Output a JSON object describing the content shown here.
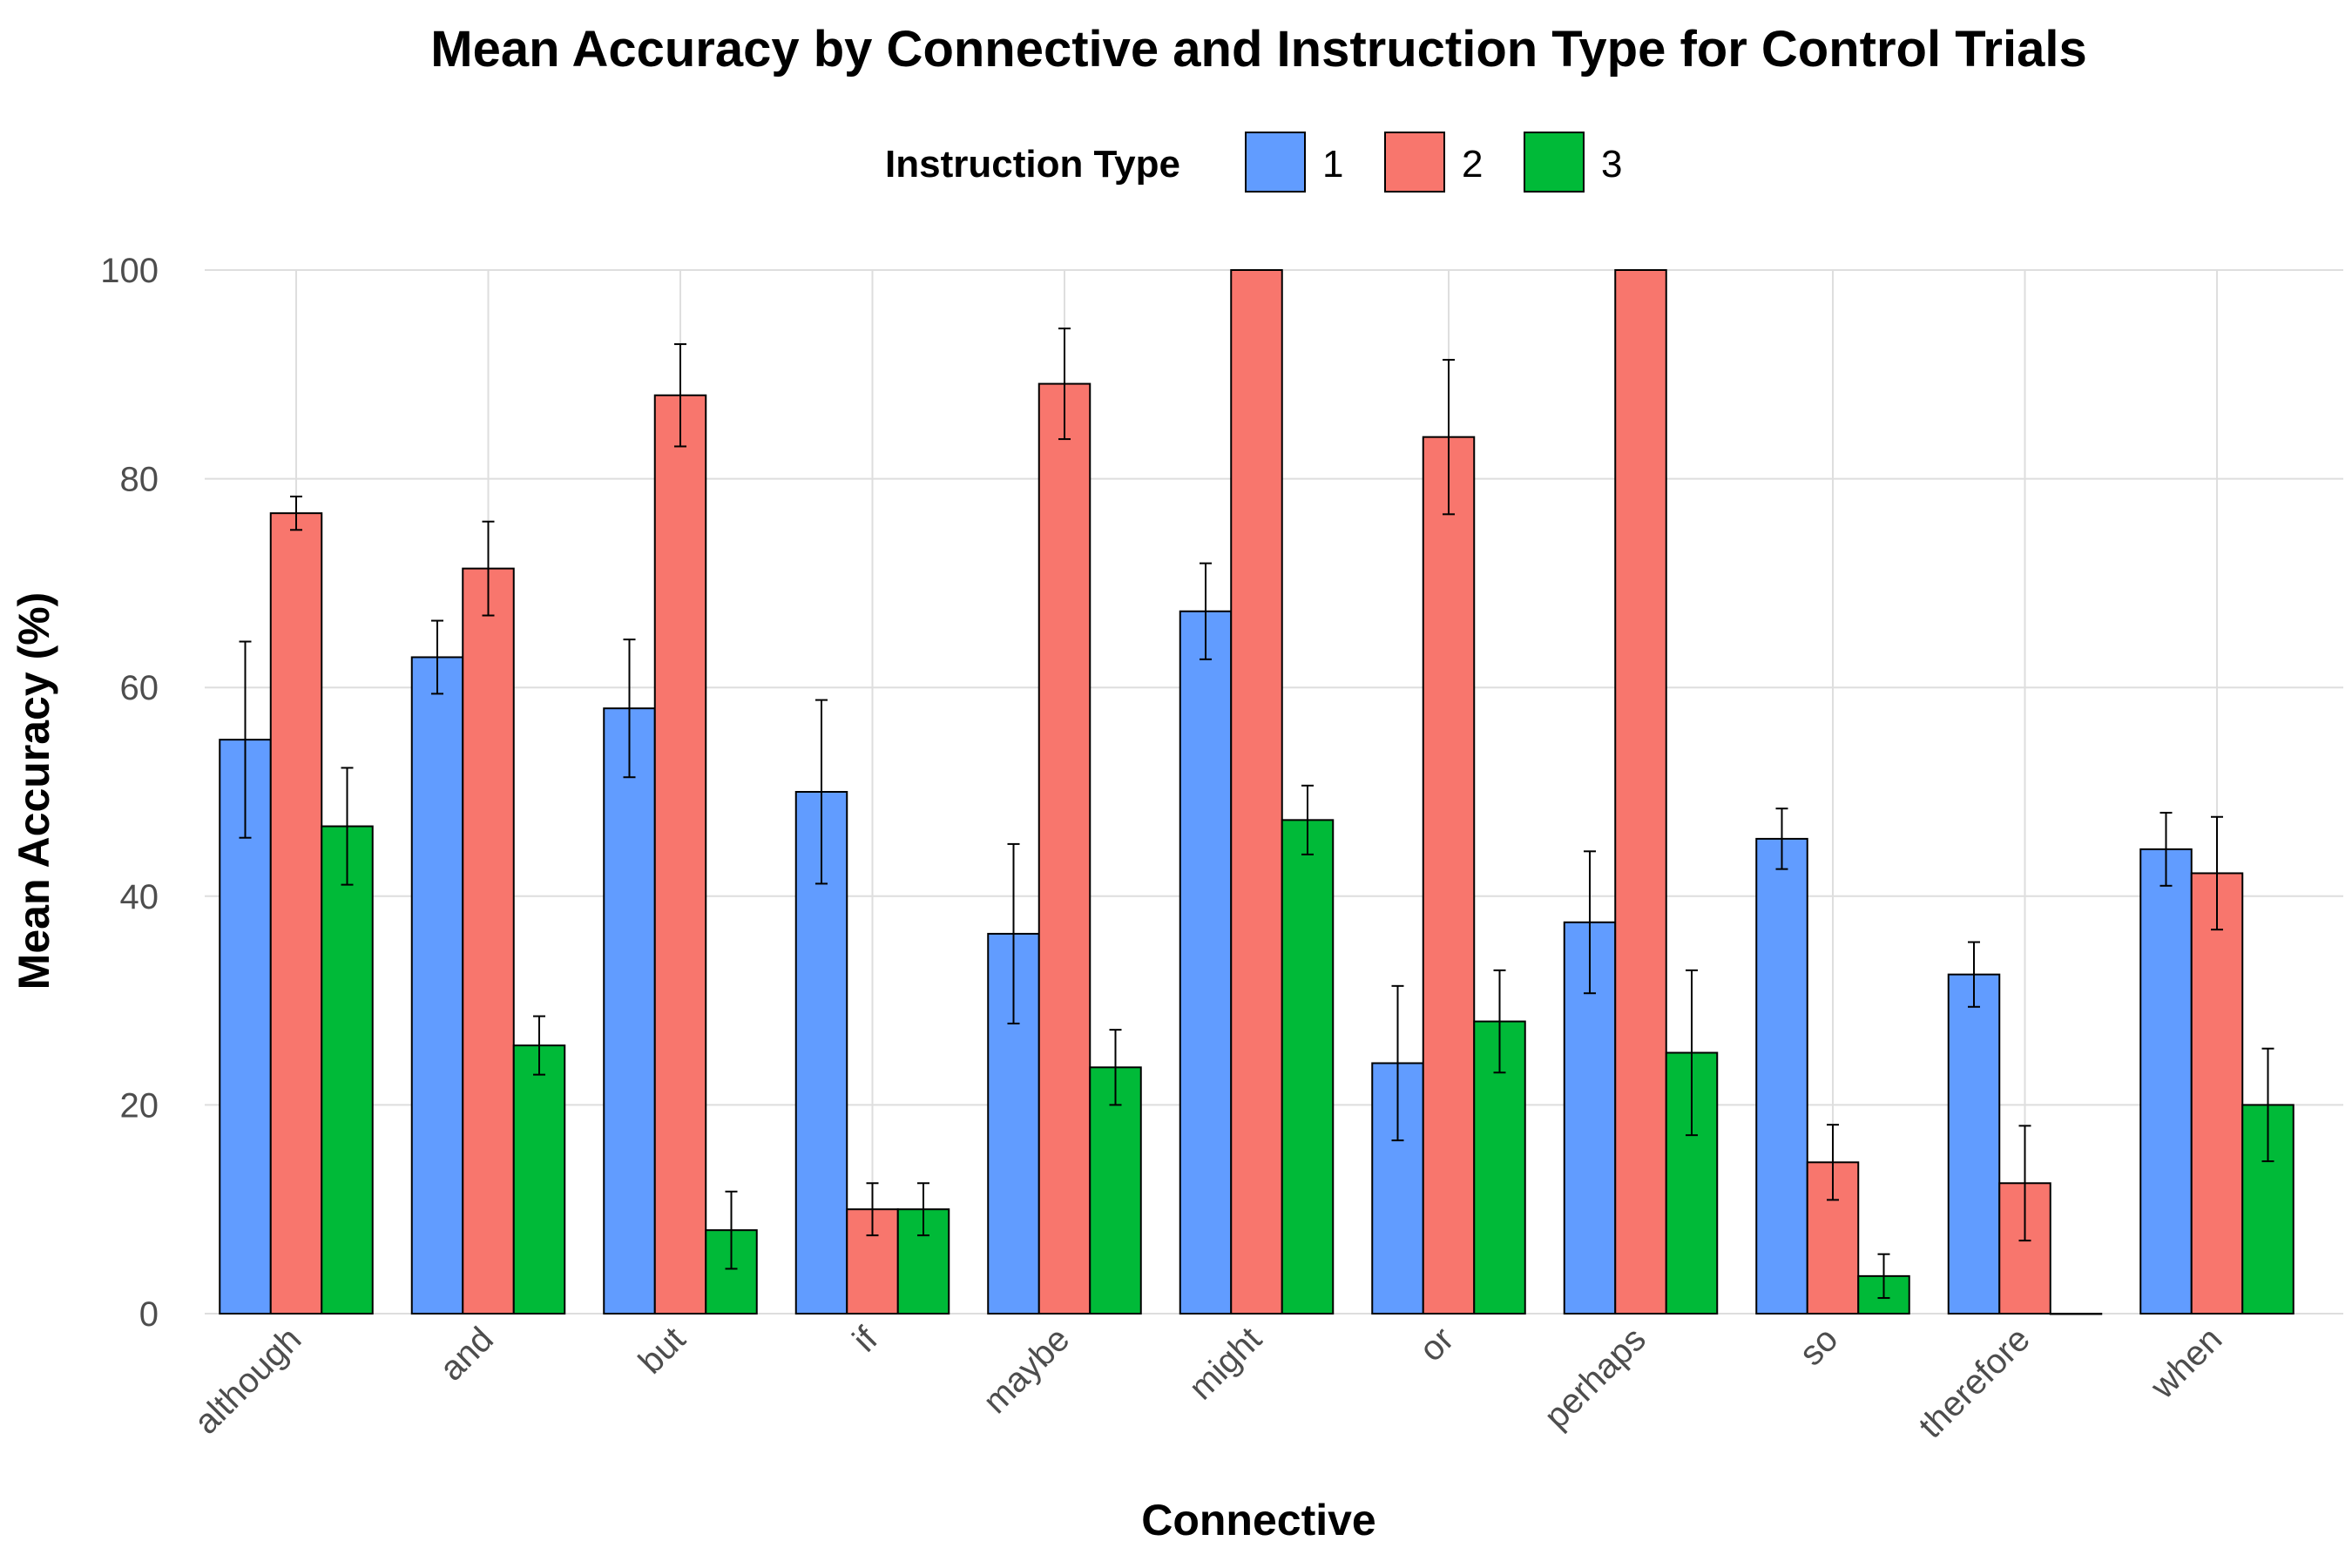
{
  "chart_data": {
    "type": "bar",
    "title": "Mean Accuracy by Connective and Instruction Type for Control Trials",
    "xlabel": "Connective",
    "ylabel": "Mean Accuracy (%)",
    "ylim": [
      0,
      100
    ],
    "yticks": [
      "0",
      "20",
      "40",
      "60",
      "80",
      "100"
    ],
    "grid": true,
    "legend": {
      "title": "Instruction Type",
      "position": "top"
    },
    "categories": [
      "although",
      "and",
      "but",
      "if",
      "maybe",
      "might",
      "or",
      "perhaps",
      "so",
      "therefore",
      "when"
    ],
    "series": [
      {
        "name": "1",
        "color": "#619CFF",
        "values": [
          55.0,
          62.9,
          58.0,
          50.0,
          36.4,
          67.3,
          24.0,
          37.5,
          45.5,
          32.5,
          44.5
        ],
        "error_low": [
          45.6,
          59.4,
          51.4,
          41.2,
          27.8,
          62.7,
          16.6,
          30.7,
          42.6,
          29.4,
          41.0
        ],
        "error_high": [
          64.4,
          66.4,
          64.6,
          58.8,
          45.0,
          71.9,
          31.4,
          44.3,
          48.4,
          35.6,
          48.0
        ]
      },
      {
        "name": "2",
        "color": "#F8766D",
        "values": [
          76.7,
          71.4,
          88.0,
          10.0,
          89.1,
          100.0,
          84.0,
          100.0,
          14.5,
          12.5,
          42.2
        ],
        "error_low": [
          75.1,
          66.9,
          83.1,
          7.5,
          83.8,
          100.0,
          76.6,
          100.0,
          10.9,
          7.0,
          36.8
        ],
        "error_high": [
          78.3,
          75.9,
          92.9,
          12.5,
          94.4,
          100.0,
          91.4,
          100.0,
          18.1,
          18.0,
          47.6
        ]
      },
      {
        "name": "3",
        "color": "#00BA38",
        "values": [
          46.7,
          25.7,
          8.0,
          10.0,
          23.6,
          47.3,
          28.0,
          25.0,
          3.6,
          0.0,
          20.0
        ],
        "error_low": [
          41.1,
          22.9,
          4.3,
          7.5,
          20.0,
          44.0,
          23.1,
          17.1,
          1.5,
          0.0,
          14.6
        ],
        "error_high": [
          52.3,
          28.5,
          11.7,
          12.5,
          27.2,
          50.6,
          32.9,
          32.9,
          5.7,
          0.0,
          25.4
        ]
      }
    ]
  }
}
